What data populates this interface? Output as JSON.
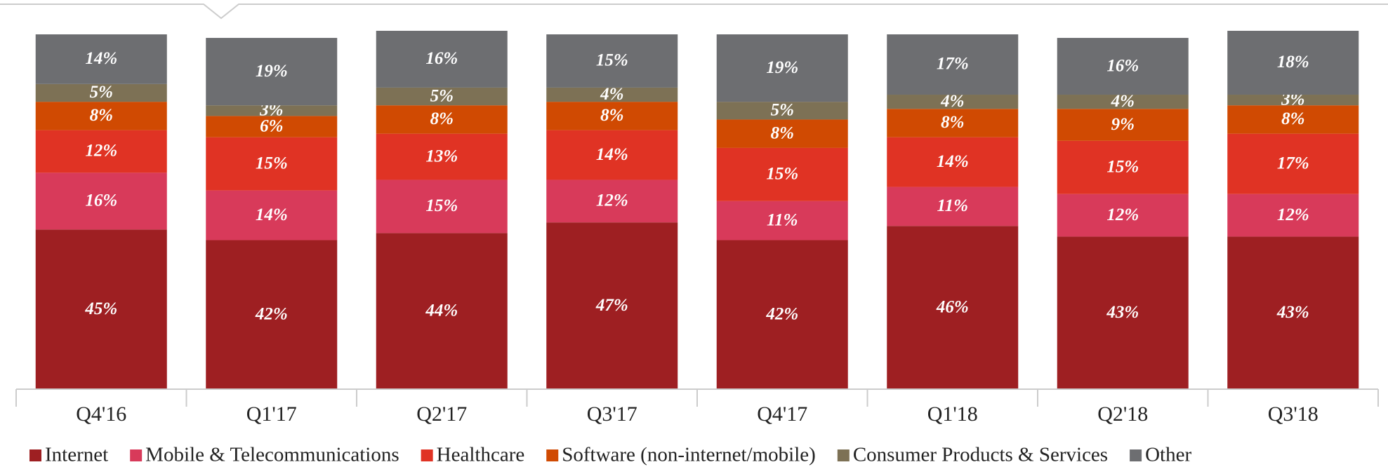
{
  "chart_data": {
    "type": "stacked_bar",
    "categories": [
      "Q4'16",
      "Q1'17",
      "Q2'17",
      "Q3'17",
      "Q4'17",
      "Q1'18",
      "Q2'18",
      "Q3'18"
    ],
    "ylim": [
      0,
      100
    ],
    "series": [
      {
        "name": "Internet",
        "color": "#9e1f22",
        "values": [
          45,
          42,
          44,
          47,
          42,
          46,
          43,
          43
        ],
        "value_labels": [
          "45%",
          "42%",
          "44%",
          "47%",
          "42%",
          "46%",
          "43%",
          "43%"
        ]
      },
      {
        "name": "Mobile & Telecommunications",
        "color": "#d83a5a",
        "values": [
          16,
          14,
          15,
          12,
          11,
          11,
          12,
          12
        ],
        "value_labels": [
          "16%",
          "14%",
          "15%",
          "12%",
          "11%",
          "11%",
          "12%",
          "12%"
        ]
      },
      {
        "name": "Healthcare",
        "color": "#e03324",
        "values": [
          12,
          15,
          13,
          14,
          15,
          14,
          15,
          17
        ],
        "value_labels": [
          "12%",
          "15%",
          "13%",
          "14%",
          "15%",
          "14%",
          "15%",
          "17%"
        ]
      },
      {
        "name": "Software (non-internet/mobile)",
        "color": "#d04a02",
        "values": [
          8,
          6,
          8,
          8,
          8,
          8,
          9,
          8
        ],
        "value_labels": [
          "8%",
          "6%",
          "8%",
          "8%",
          "8%",
          "8%",
          "9%",
          "8%"
        ]
      },
      {
        "name": "Consumer Products & Services",
        "color": "#7d7155",
        "values": [
          5,
          3,
          5,
          4,
          5,
          4,
          4,
          3
        ],
        "value_labels": [
          "5%",
          "3%",
          "5%",
          "4%",
          "5%",
          "4%",
          "4%",
          "3%"
        ]
      },
      {
        "name": "Other",
        "color": "#6d6e71",
        "values": [
          14,
          19,
          16,
          15,
          19,
          17,
          16,
          18
        ],
        "value_labels": [
          "14%",
          "19%",
          "16%",
          "15%",
          "19%",
          "17%",
          "16%",
          "18%"
        ]
      }
    ]
  }
}
